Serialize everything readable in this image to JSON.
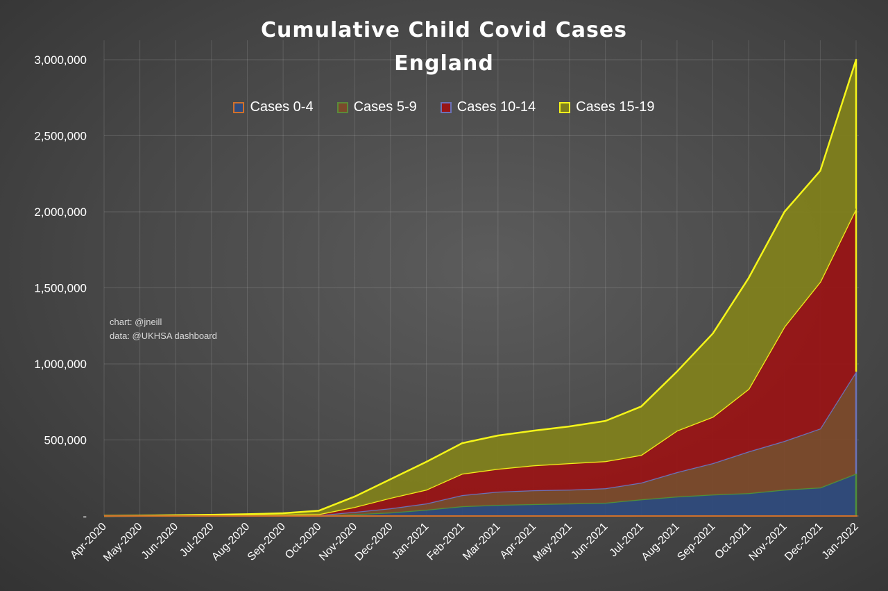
{
  "chart_data": {
    "type": "area",
    "stacked": true,
    "title": "Cumulative Child Covid Cases",
    "subtitle": "England",
    "xlabel": "",
    "ylabel": "",
    "ylim": [
      0,
      3000000
    ],
    "yticks": [
      "-",
      "500,000",
      "1,000,000",
      "1,500,000",
      "2,000,000",
      "2,500,000",
      "3,000,000"
    ],
    "grid": true,
    "legend_position": "top",
    "categories": [
      "Apr-2020",
      "May-2020",
      "Jun-2020",
      "Jul-2020",
      "Aug-2020",
      "Sep-2020",
      "Oct-2020",
      "Nov-2020",
      "Dec-2020",
      "Jan-2021",
      "Feb-2021",
      "Mar-2021",
      "Apr-2021",
      "May-2021",
      "Jun-2021",
      "Jul-2021",
      "Aug-2021",
      "Sep-2021",
      "Oct-2021",
      "Nov-2021",
      "Dec-2021",
      "Jan-2022"
    ],
    "series": [
      {
        "name": "Cases 0-4",
        "fill": "#2f4b7c",
        "line": "#4f8f3a",
        "swatch_border": "#d0702a",
        "values": [
          100,
          300,
          600,
          900,
          1300,
          2000,
          2000,
          12000,
          23000,
          41000,
          64000,
          73000,
          78000,
          82000,
          87000,
          109000,
          128000,
          141000,
          150000,
          173000,
          187000,
          278000
        ]
      },
      {
        "name": "Cases 5-9",
        "fill": "#7b4a2b",
        "line": "#6a72b8",
        "swatch_border": "#5a8a3a",
        "values": [
          100,
          300,
          700,
          1000,
          1500,
          2300,
          3000,
          15000,
          27000,
          41000,
          73000,
          87000,
          91000,
          91000,
          95000,
          110000,
          160000,
          206000,
          274000,
          320000,
          388000,
          670000
        ]
      },
      {
        "name": "Cases 10-14",
        "fill": "#981516",
        "line": "#f2ee1a",
        "swatch_border": "#6a72b8",
        "values": [
          200,
          500,
          1200,
          1800,
          2700,
          4000,
          7000,
          32000,
          69000,
          91000,
          141000,
          150000,
          164000,
          174000,
          178000,
          182000,
          273000,
          305000,
          411000,
          752000,
          965000,
          1072000
        ]
      },
      {
        "name": "Cases 15-19",
        "fill": "#7f7f1c",
        "line": "#f5f51a",
        "swatch_border": "#f5f51a",
        "values": [
          400,
          1000,
          2500,
          4300,
          6500,
          10000,
          23000,
          69000,
          123000,
          183000,
          201000,
          219000,
          228000,
          242000,
          265000,
          319000,
          389000,
          548000,
          730000,
          755000,
          730000,
          980000
        ]
      }
    ],
    "annotations": [
      "chart: @jneill",
      "data: @UKHSA dashboard"
    ]
  }
}
